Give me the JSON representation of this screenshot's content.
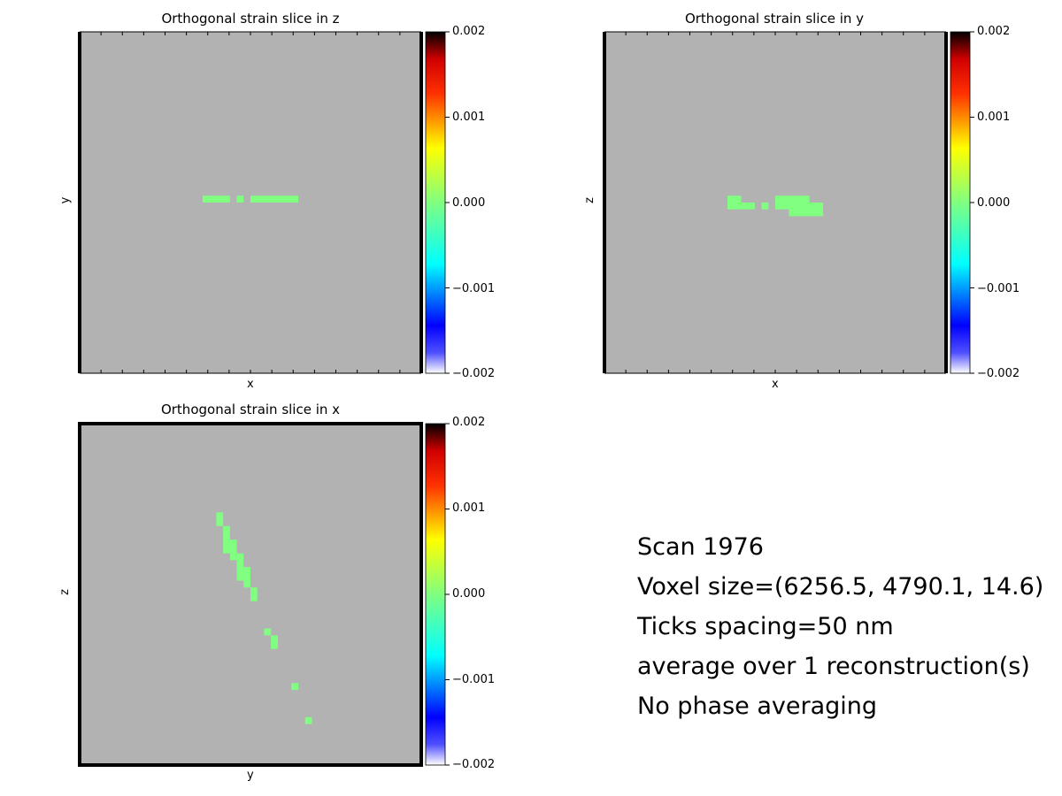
{
  "chart_data": [
    {
      "type": "heatmap",
      "title": "Orthogonal strain slice in z",
      "xlabel": "x",
      "ylabel": "y",
      "colorbar": {
        "colormap": "jet",
        "range": [
          -0.002,
          0.002
        ],
        "ticks": [
          "0.002",
          "0.001",
          "0.000",
          "−0.001",
          "−0.002"
        ]
      },
      "background_color": "#b2b2b2",
      "value_color": "#80ff80",
      "grid_cells": 100,
      "points": [
        {
          "col": 36,
          "row": 48,
          "w": 8,
          "h": 2,
          "value": 0.0
        },
        {
          "col": 46,
          "row": 48,
          "w": 2,
          "h": 2,
          "value": 0.0
        },
        {
          "col": 50,
          "row": 48,
          "w": 14,
          "h": 2,
          "value": 0.0
        }
      ]
    },
    {
      "type": "heatmap",
      "title": "Orthogonal strain slice in y",
      "xlabel": "x",
      "ylabel": "z",
      "colorbar": {
        "colormap": "jet",
        "range": [
          -0.002,
          0.002
        ],
        "ticks": [
          "0.002",
          "0.001",
          "0.000",
          "−0.001",
          "−0.002"
        ]
      },
      "background_color": "#b2b2b2",
      "value_color": "#80ff80",
      "grid_cells": 100,
      "points": [
        {
          "col": 36,
          "row": 48,
          "w": 4,
          "h": 4,
          "value": 0.0
        },
        {
          "col": 40,
          "row": 50,
          "w": 4,
          "h": 2,
          "value": 0.0
        },
        {
          "col": 46,
          "row": 50,
          "w": 2,
          "h": 2,
          "value": 0.0
        },
        {
          "col": 50,
          "row": 48,
          "w": 10,
          "h": 4,
          "value": 0.0
        },
        {
          "col": 54,
          "row": 50,
          "w": 10,
          "h": 4,
          "value": 0.0
        }
      ]
    },
    {
      "type": "heatmap",
      "title": "Orthogonal strain slice in x",
      "xlabel": "y",
      "ylabel": "z",
      "colorbar": {
        "colormap": "jet",
        "range": [
          -0.002,
          0.002
        ],
        "ticks": [
          "0.002",
          "0.001",
          "0.000",
          "−0.001",
          "−0.002"
        ]
      },
      "background_color": "#b2b2b2",
      "value_color": "#80ff80",
      "grid_cells": 100,
      "points": [
        {
          "col": 40,
          "row": 26,
          "w": 2,
          "h": 4,
          "value": 0.0
        },
        {
          "col": 42,
          "row": 30,
          "w": 2,
          "h": 4,
          "value": 0.0
        },
        {
          "col": 42,
          "row": 34,
          "w": 4,
          "h": 4,
          "value": 0.0
        },
        {
          "col": 44,
          "row": 38,
          "w": 2,
          "h": 2,
          "value": 0.0
        },
        {
          "col": 46,
          "row": 38,
          "w": 2,
          "h": 4,
          "value": 0.0
        },
        {
          "col": 46,
          "row": 42,
          "w": 4,
          "h": 4,
          "value": 0.0
        },
        {
          "col": 48,
          "row": 46,
          "w": 2,
          "h": 2,
          "value": 0.0
        },
        {
          "col": 50,
          "row": 48,
          "w": 2,
          "h": 4,
          "value": 0.0
        },
        {
          "col": 54,
          "row": 60,
          "w": 2,
          "h": 2,
          "value": 0.0
        },
        {
          "col": 56,
          "row": 62,
          "w": 2,
          "h": 4,
          "value": 0.0
        },
        {
          "col": 62,
          "row": 76,
          "w": 2,
          "h": 2,
          "value": 0.0
        },
        {
          "col": 66,
          "row": 86,
          "w": 2,
          "h": 2,
          "value": 0.0
        }
      ]
    }
  ],
  "info_text": {
    "scan": "Scan 1976",
    "voxel_size": "Voxel size=(6256.5, 4790.1, 14.6)",
    "ticks_spacing": "Ticks spacing=50 nm",
    "average": "average over 1 reconstruction(s)",
    "phase": "No phase averaging"
  }
}
